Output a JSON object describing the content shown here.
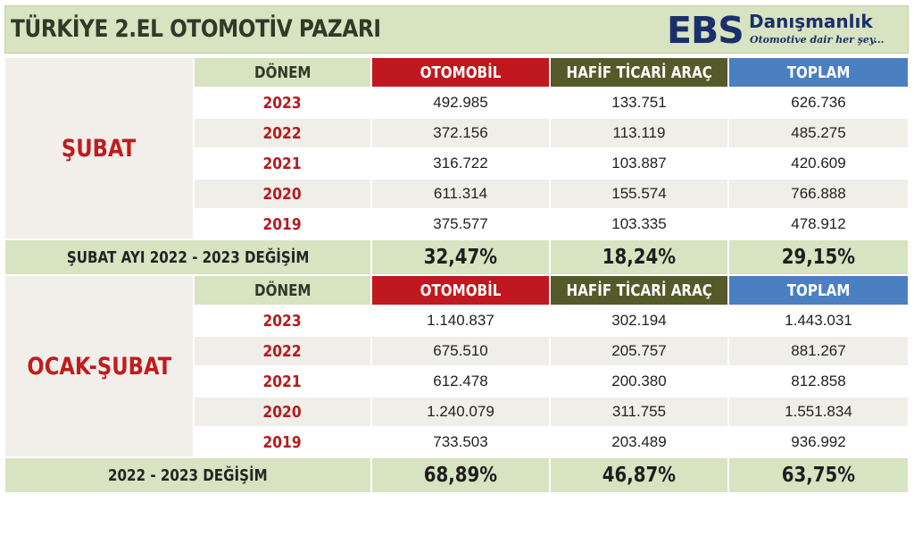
{
  "header": {
    "title": "TÜRKİYE 2.EL OTOMOTİV PAZARI",
    "logo_mark": "EBS",
    "logo_name": "Danışmanlık",
    "logo_tagline": "Otomotive dair her şey..."
  },
  "chart_data": [
    {
      "type": "table",
      "title": "ŞUBAT",
      "columns": [
        "DÖNEM",
        "OTOMOBİL",
        "HAFİF TİCARİ ARAÇ",
        "TOPLAM"
      ],
      "rows": [
        {
          "period": "2023",
          "car": "492.985",
          "lcv": "133.751",
          "total": "626.736"
        },
        {
          "period": "2022",
          "car": "372.156",
          "lcv": "113.119",
          "total": "485.275"
        },
        {
          "period": "2021",
          "car": "316.722",
          "lcv": "103.887",
          "total": "420.609"
        },
        {
          "period": "2020",
          "car": "611.314",
          "lcv": "155.574",
          "total": "766.888"
        },
        {
          "period": "2019",
          "car": "375.577",
          "lcv": "103.335",
          "total": "478.912"
        }
      ],
      "change": {
        "label": "ŞUBAT AYI  2022 - 2023 DEĞİŞİM",
        "car": "32,47%",
        "lcv": "18,24%",
        "total": "29,15%"
      }
    },
    {
      "type": "table",
      "title": "OCAK-ŞUBAT",
      "columns": [
        "DÖNEM",
        "OTOMOBİL",
        "HAFİF TİCARİ ARAÇ",
        "TOPLAM"
      ],
      "rows": [
        {
          "period": "2023",
          "car": "1.140.837",
          "lcv": "302.194",
          "total": "1.443.031"
        },
        {
          "period": "2022",
          "car": "675.510",
          "lcv": "205.757",
          "total": "881.267"
        },
        {
          "period": "2021",
          "car": "612.478",
          "lcv": "200.380",
          "total": "812.858"
        },
        {
          "period": "2020",
          "car": "1.240.079",
          "lcv": "311.755",
          "total": "1.551.834"
        },
        {
          "period": "2019",
          "car": "733.503",
          "lcv": "203.489",
          "total": "936.992"
        }
      ],
      "change": {
        "label": "2022 - 2023 DEĞİŞİM",
        "car": "68,89%",
        "lcv": "46,87%",
        "total": "63,75%"
      }
    }
  ],
  "colors": {
    "header_bg": "#d7e3c1",
    "otomobil": "#c0181f",
    "hafif_ticari": "#545a2a",
    "toplam": "#4a7fc1",
    "year_text": "#b41c1f",
    "logo": "#1b2f6b"
  }
}
